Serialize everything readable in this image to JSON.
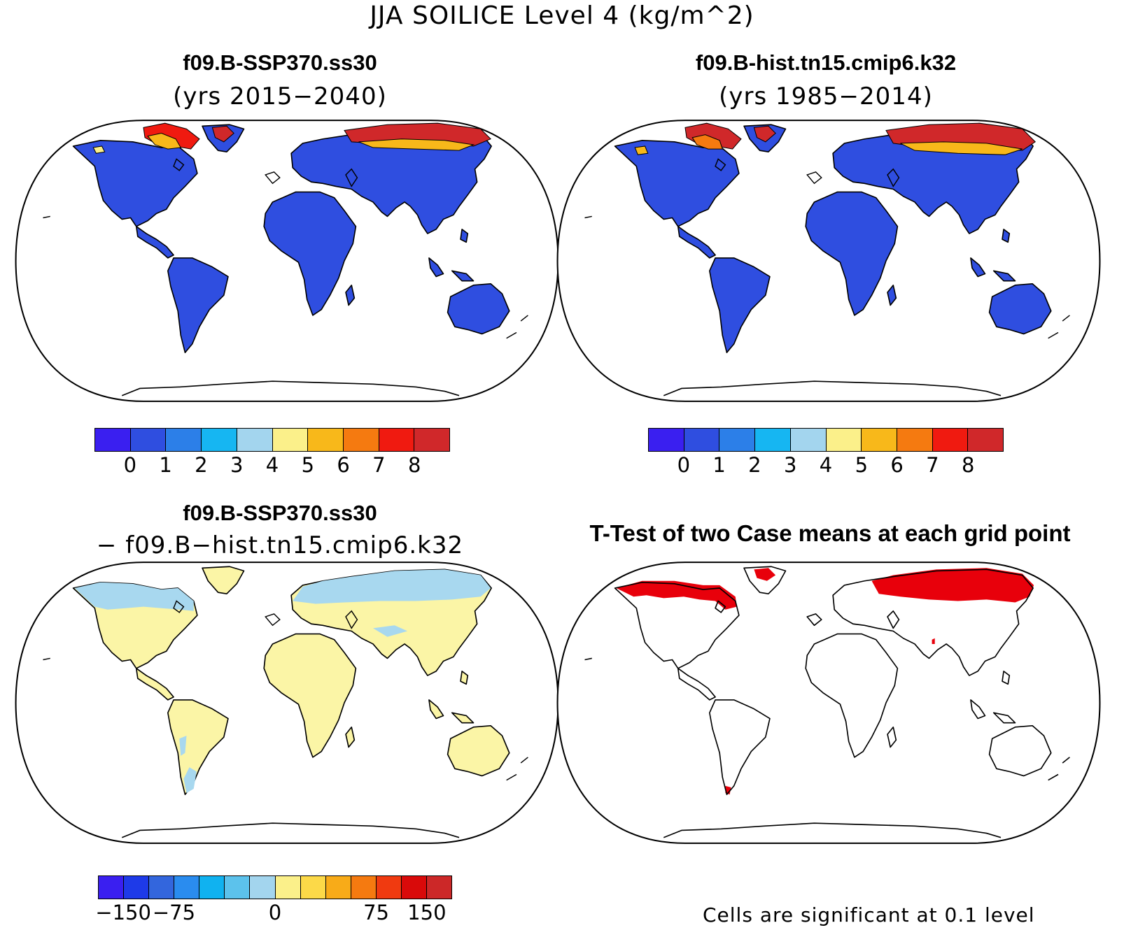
{
  "title": "JJA SOILICE Level 4 (kg/m^2)",
  "panels": {
    "p1": {
      "title": "f09.B-SSP370.ss30",
      "subtitle": "(yrs 2015−2040)"
    },
    "p2": {
      "title": "f09.B-hist.tn15.cmip6.k32",
      "subtitle": "(yrs 1985−2014)"
    },
    "p3": {
      "title": "f09.B-SSP370.ss30",
      "subtitle": "− f09.B−hist.tn15.cmip6.k32"
    },
    "p4": {
      "title": "T-Test of two Case means at each grid point",
      "note": "Cells are significant at 0.1 level"
    }
  },
  "colorbars": {
    "abs": {
      "colors": [
        "#3a1ff0",
        "#2f4ee0",
        "#2c7fe8",
        "#16b6f2",
        "#a3d5ee",
        "#fbf08a",
        "#f8b81a",
        "#f57a10",
        "#f01a10",
        "#d0282a"
      ],
      "labels": [
        "0",
        "1",
        "2",
        "3",
        "4",
        "5",
        "6",
        "7",
        "8"
      ]
    },
    "diff": {
      "colors": [
        "#3a1ff0",
        "#1e3ae8",
        "#3366dd",
        "#2a8cef",
        "#10b2f0",
        "#5cc2ec",
        "#a3d5ee",
        "#fbf08a",
        "#fcd948",
        "#f8ab18",
        "#f57a10",
        "#f03a10",
        "#d90a0a",
        "#cc2828"
      ],
      "labels": [
        "−150",
        "−75",
        "0",
        "75",
        "150"
      ]
    }
  },
  "colors": {
    "land_abs": "#2f4ee0",
    "land_diff": "#fbf5a6",
    "diff_north": "#a8d8ef",
    "significant": "#e8000b",
    "coast": "#000000"
  }
}
